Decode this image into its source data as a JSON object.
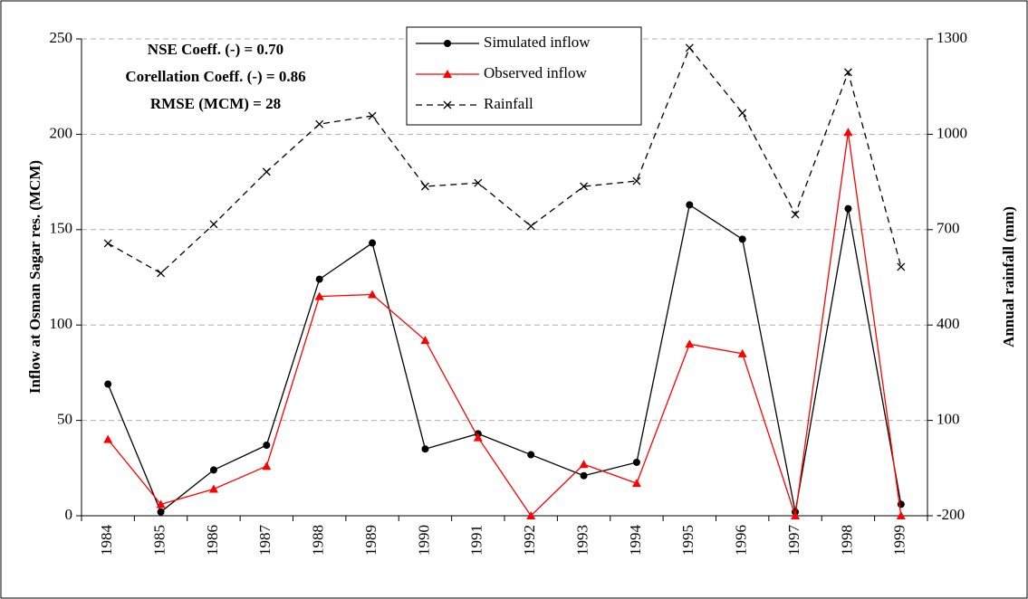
{
  "chart_data": {
    "type": "line",
    "annotations": [
      "NSE Coeff. (-) = 0.70",
      "Corellation Coeff. (-) = 0.86",
      "RMSE (MCM) = 28"
    ],
    "y_label": "Inflow at Osman Sagar res. (MCM)",
    "y2_label": "Annual rainfall (mm)",
    "categories": [
      "1984",
      "1985",
      "1986",
      "1987",
      "1988",
      "1989",
      "1990",
      "1991",
      "1992",
      "1993",
      "1994",
      "1995",
      "1996",
      "1997",
      "1998",
      "1999"
    ],
    "series": [
      {
        "name": "Simulated inflow",
        "color": "#000000",
        "marker": "circle",
        "dash": false,
        "values": [
          69,
          2,
          24,
          37,
          124,
          143,
          35,
          43,
          32,
          21,
          28,
          163,
          145,
          2,
          161,
          6
        ]
      },
      {
        "name": "Observed inflow",
        "color": "#ff0000",
        "marker": "triangle",
        "dash": false,
        "values": [
          40,
          6,
          14,
          26,
          115,
          116,
          92,
          41,
          0,
          27,
          17,
          90,
          85,
          0,
          201,
          0
        ]
      },
      {
        "name": "Rainfall",
        "color": "#000000",
        "marker": "x",
        "dash": true,
        "axis": "y2",
        "values": [
          657,
          563,
          717,
          882,
          1032,
          1058,
          836,
          847,
          711,
          836,
          853,
          1272,
          1067,
          748,
          1195,
          583
        ]
      }
    ],
    "ylim": [
      0,
      250
    ],
    "yticks": [
      0,
      50,
      100,
      150,
      200,
      250
    ],
    "y2lim": [
      -200,
      1300
    ],
    "y2ticks": [
      -200,
      100,
      400,
      700,
      1000,
      1300
    ],
    "grid": true,
    "legend": "top"
  }
}
